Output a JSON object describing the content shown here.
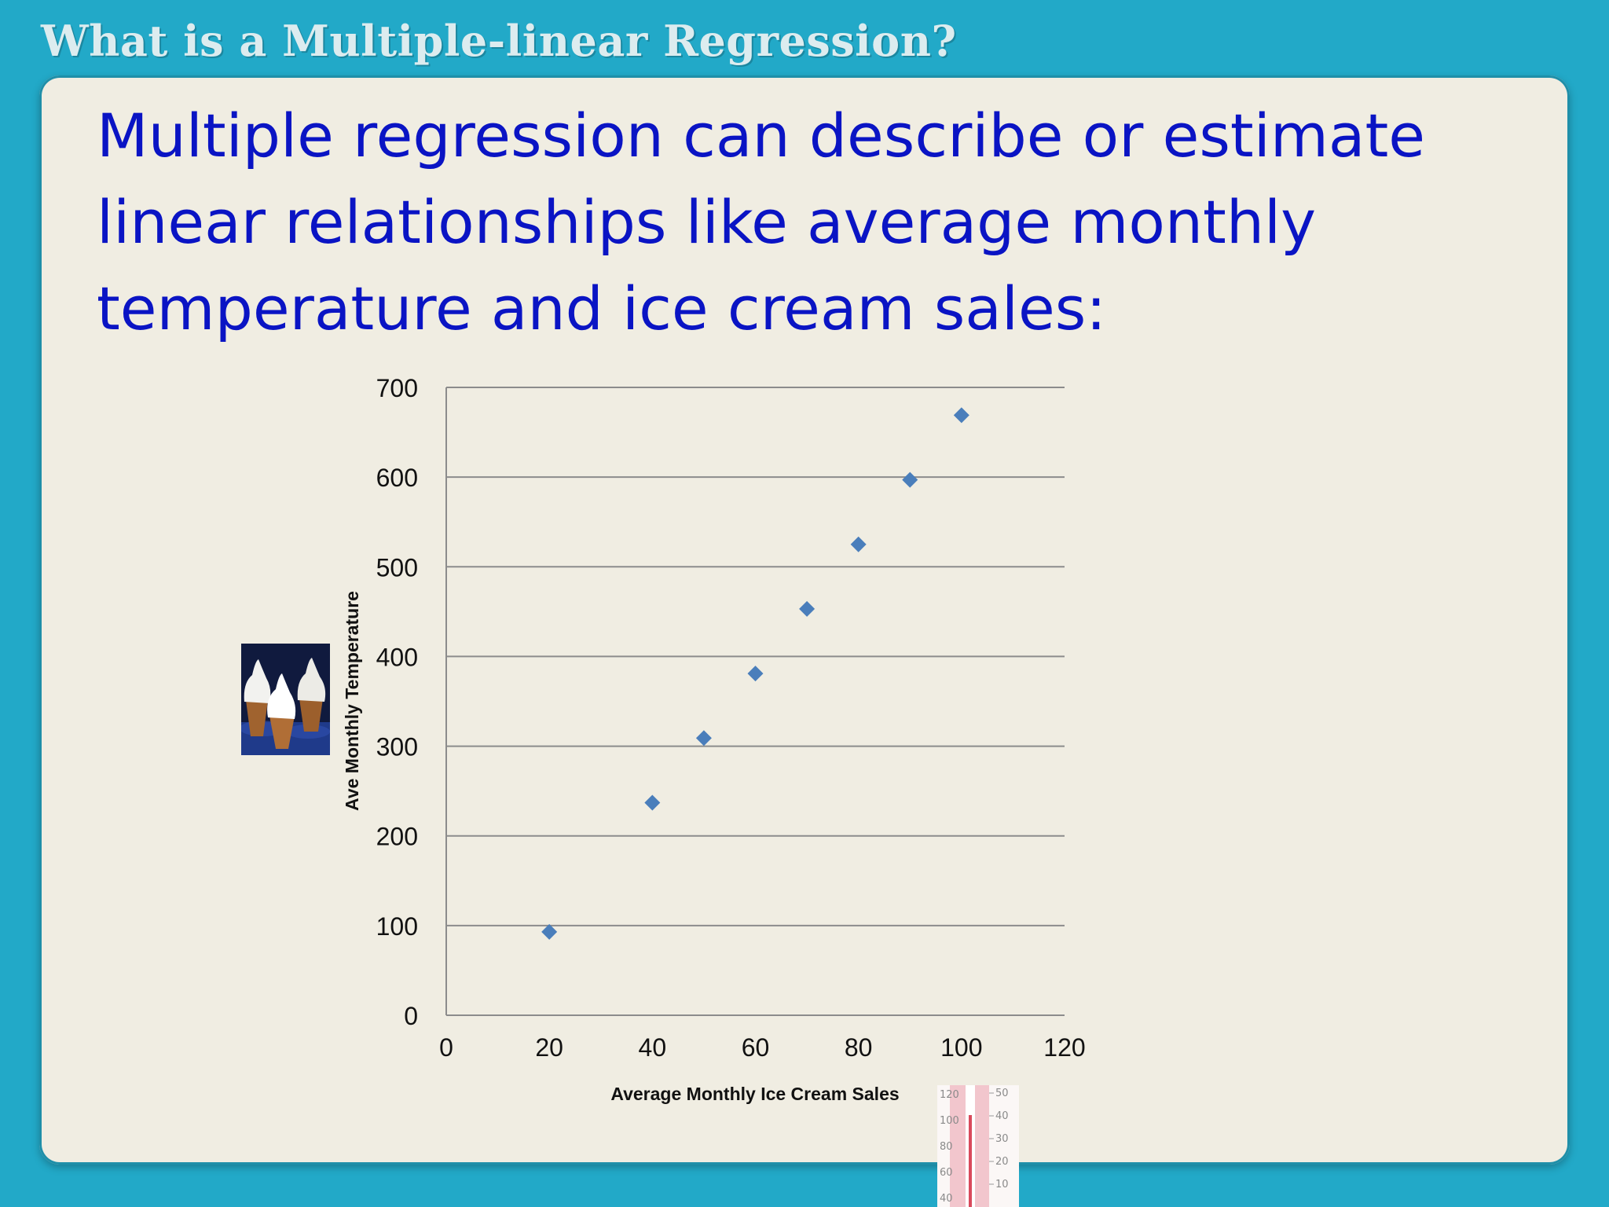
{
  "slide": {
    "title": "What is a Multiple-linear Regression?",
    "body": "Multiple regression can describe or estimate linear relationships like average monthly temperature and ice cream sales:"
  },
  "chart_data": {
    "type": "scatter",
    "title": "",
    "xlabel": "Average Monthly Ice Cream Sales",
    "ylabel": "Ave Monthly Temperature",
    "xlim": [
      0,
      120
    ],
    "ylim": [
      0,
      700
    ],
    "x_ticks": [
      0,
      20,
      40,
      60,
      80,
      100,
      120
    ],
    "y_ticks": [
      0,
      100,
      200,
      300,
      400,
      500,
      600,
      700
    ],
    "grid": "horizontal",
    "legend": "none",
    "marker": "diamond",
    "color": "#4a7ebb",
    "series": [
      {
        "x": [
          20,
          40,
          50,
          60,
          70,
          80,
          90,
          100
        ],
        "y": [
          93,
          237,
          309,
          381,
          453,
          525,
          597,
          669
        ]
      }
    ]
  },
  "images": {
    "left": "ice-cream-cones",
    "bottom": "thermometer"
  },
  "thermometer_labels": {
    "fahrenheit": [
      "120",
      "100",
      "80",
      "60",
      "40"
    ],
    "celsius": [
      "50",
      "40",
      "30",
      "20",
      "10"
    ]
  }
}
